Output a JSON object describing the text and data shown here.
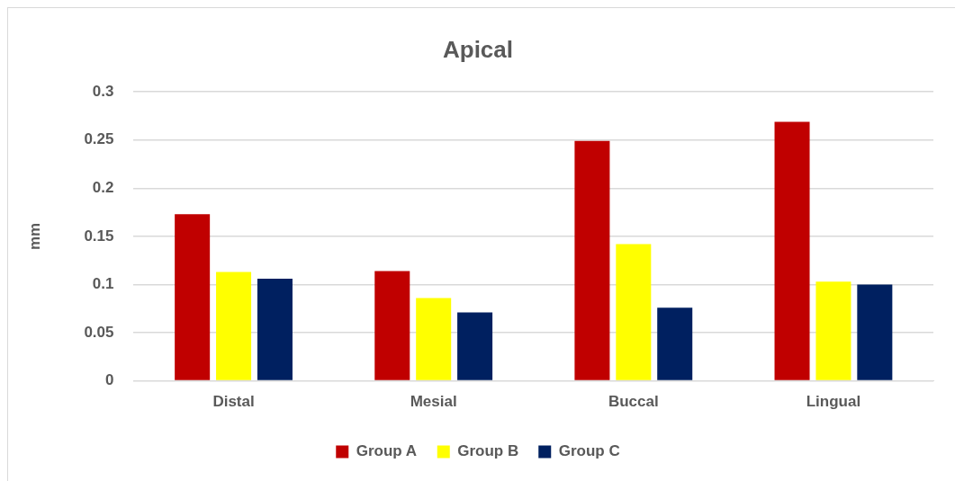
{
  "chart_data": {
    "type": "bar",
    "title": "Apical",
    "ylabel": "mm",
    "categories": [
      "Distal",
      "Mesial",
      "Buccal",
      "Lingual"
    ],
    "series": [
      {
        "name": "Group A",
        "color": "#c00000",
        "values": [
          0.173,
          0.114,
          0.249,
          0.269
        ]
      },
      {
        "name": "Group B",
        "color": "#ffff00",
        "values": [
          0.113,
          0.086,
          0.142,
          0.103
        ]
      },
      {
        "name": "Group C",
        "color": "#002060",
        "values": [
          0.106,
          0.071,
          0.076,
          0.1
        ]
      }
    ],
    "ylim": [
      0,
      0.3
    ],
    "yticks": [
      0,
      0.05,
      0.1,
      0.15,
      0.2,
      0.25,
      0.3
    ],
    "grid": "y",
    "legend": "bottom"
  }
}
